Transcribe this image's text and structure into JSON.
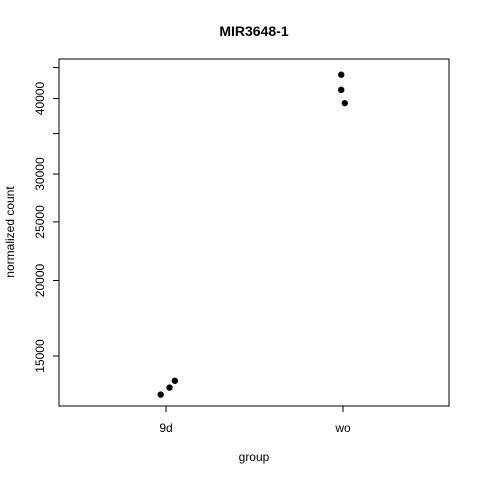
{
  "chart_data": {
    "type": "scatter",
    "title": "MIR3648-1",
    "xlabel": "group",
    "ylabel": "normalized count",
    "y_scale": "log",
    "categories": [
      "9d",
      "wo"
    ],
    "y_ticks": [
      15000,
      20000,
      25000,
      30000,
      40000
    ],
    "ylim": [
      12400,
      46500
    ],
    "grid": false,
    "legend": "none",
    "point_color": "#000000",
    "points": [
      {
        "category": "9d",
        "offset": -0.03,
        "y": 12950
      },
      {
        "category": "9d",
        "offset": 0.02,
        "y": 13300
      },
      {
        "category": "9d",
        "offset": 0.05,
        "y": 13650
      },
      {
        "category": "wo",
        "offset": -0.01,
        "y": 43800
      },
      {
        "category": "wo",
        "offset": -0.01,
        "y": 41350
      },
      {
        "category": "wo",
        "offset": 0.01,
        "y": 39300
      }
    ]
  }
}
